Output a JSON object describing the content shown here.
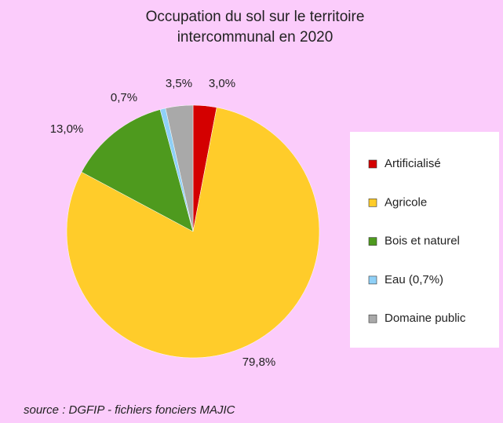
{
  "chart_data": {
    "type": "pie",
    "title": [
      "Occupation du sol sur le territoire",
      "intercommunal en 2020"
    ],
    "source": "source : DGFIP - fichiers fonciers MAJIC",
    "series": [
      {
        "name": "Artificialisé",
        "color": "#d40000",
        "values": [
          3.0
        ],
        "value_labels": [
          "3,0%"
        ]
      },
      {
        "name": "Agricole",
        "color": "#ffcc2a",
        "values": [
          79.8
        ],
        "value_labels": [
          "79,8%"
        ]
      },
      {
        "name": "Bois et naturel",
        "color": "#4e9a1e",
        "values": [
          13.0
        ],
        "value_labels": [
          "13,0%"
        ]
      },
      {
        "name": "Eau (0,7%)",
        "color": "#8fd0f7",
        "values": [
          0.7
        ],
        "value_labels": [
          "0,7%"
        ]
      },
      {
        "name": "Domaine public",
        "color": "#a9a9a9",
        "values": [
          3.5
        ],
        "value_labels": [
          "3,5%"
        ]
      }
    ],
    "legend": "right"
  }
}
